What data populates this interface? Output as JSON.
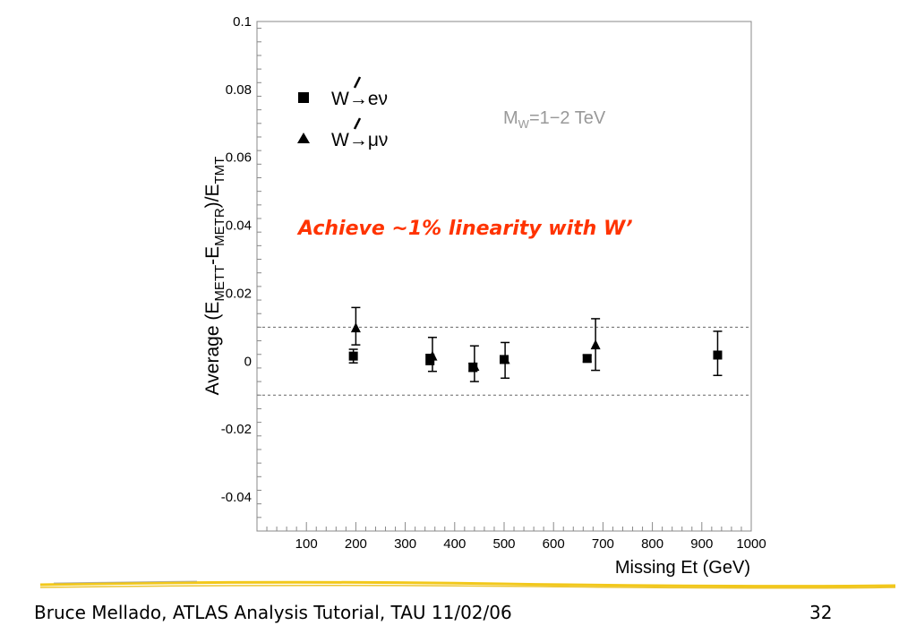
{
  "chart_data": {
    "type": "scatter",
    "title": "",
    "xlabel": "Missing Et (GeV)",
    "xlim": [
      0,
      1000
    ],
    "ylim": [
      -0.05,
      0.1
    ],
    "x_ticks": [
      100,
      200,
      300,
      400,
      500,
      600,
      700,
      800,
      900,
      1000
    ],
    "y_ticks": [
      -0.04,
      -0.02,
      0,
      0.02,
      0.04,
      0.06,
      0.08,
      0.1
    ],
    "x_tick_labels": [
      "100",
      "200",
      "300",
      "400",
      "500",
      "600",
      "700",
      "800",
      "900",
      "1000"
    ],
    "y_tick_labels": [
      "-0.04",
      "-0.02",
      "0",
      "0.02",
      "0.04",
      "0.06",
      "0.08",
      "0.1"
    ],
    "grid": false,
    "legend_position": "top-left",
    "reference_lines": [
      0.01,
      -0.01
    ],
    "series": [
      {
        "name": "W'→eν",
        "marker": "square",
        "points": [
          {
            "x": 195,
            "y": 0.0015,
            "err_lo": 0.002,
            "err_hi": 0.002
          },
          {
            "x": 350,
            "y": 0.0005,
            "err_lo": 0.0015,
            "err_hi": 0.0015
          },
          {
            "x": 437,
            "y": -0.0018,
            "err_lo": 0.0012,
            "err_hi": 0.0012
          },
          {
            "x": 500,
            "y": 0.0005,
            "err_lo": 0.001,
            "err_hi": 0.001
          },
          {
            "x": 668,
            "y": 0.0008,
            "err_lo": 0.001,
            "err_hi": 0.001
          },
          {
            "x": 932,
            "y": 0.0018,
            "err_lo": 0.006,
            "err_hi": 0.007
          }
        ]
      },
      {
        "name": "W'→μν",
        "marker": "triangle",
        "points": [
          {
            "x": 200,
            "y": 0.0098,
            "err_lo": 0.005,
            "err_hi": 0.006
          },
          {
            "x": 355,
            "y": 0.0015,
            "err_lo": 0.0045,
            "err_hi": 0.0055
          },
          {
            "x": 440,
            "y": -0.0015,
            "err_lo": 0.0045,
            "err_hi": 0.006
          },
          {
            "x": 502,
            "y": 0.0005,
            "err_lo": 0.0055,
            "err_hi": 0.005
          },
          {
            "x": 685,
            "y": 0.0048,
            "err_lo": 0.0075,
            "err_hi": 0.0077
          }
        ]
      }
    ],
    "annotations": [
      {
        "text": "Achieve ~1% linearity with W’",
        "color": "#ff3300"
      }
    ],
    "legend_entries": [
      {
        "prefix": "W",
        "arrow": "→",
        "decay": "eν"
      },
      {
        "prefix": "W",
        "arrow": "→",
        "decay": "μν"
      }
    ],
    "mass_label": {
      "base": "M",
      "sub": "W",
      "text": "=1−2 TeV",
      "color": "#999999"
    },
    "ylabel_parts": {
      "t1": "Average (E",
      "s1": "METT",
      "t2": "-E",
      "s2": "METR",
      "t3": ")/E",
      "s3": "TMT"
    }
  },
  "footer": {
    "left": "Bruce Mellado, ATLAS Analysis Tutorial, TAU 11/02/06",
    "right": "32"
  },
  "colors": {
    "line": "#f2c81a",
    "annotation": "#ff3300"
  }
}
